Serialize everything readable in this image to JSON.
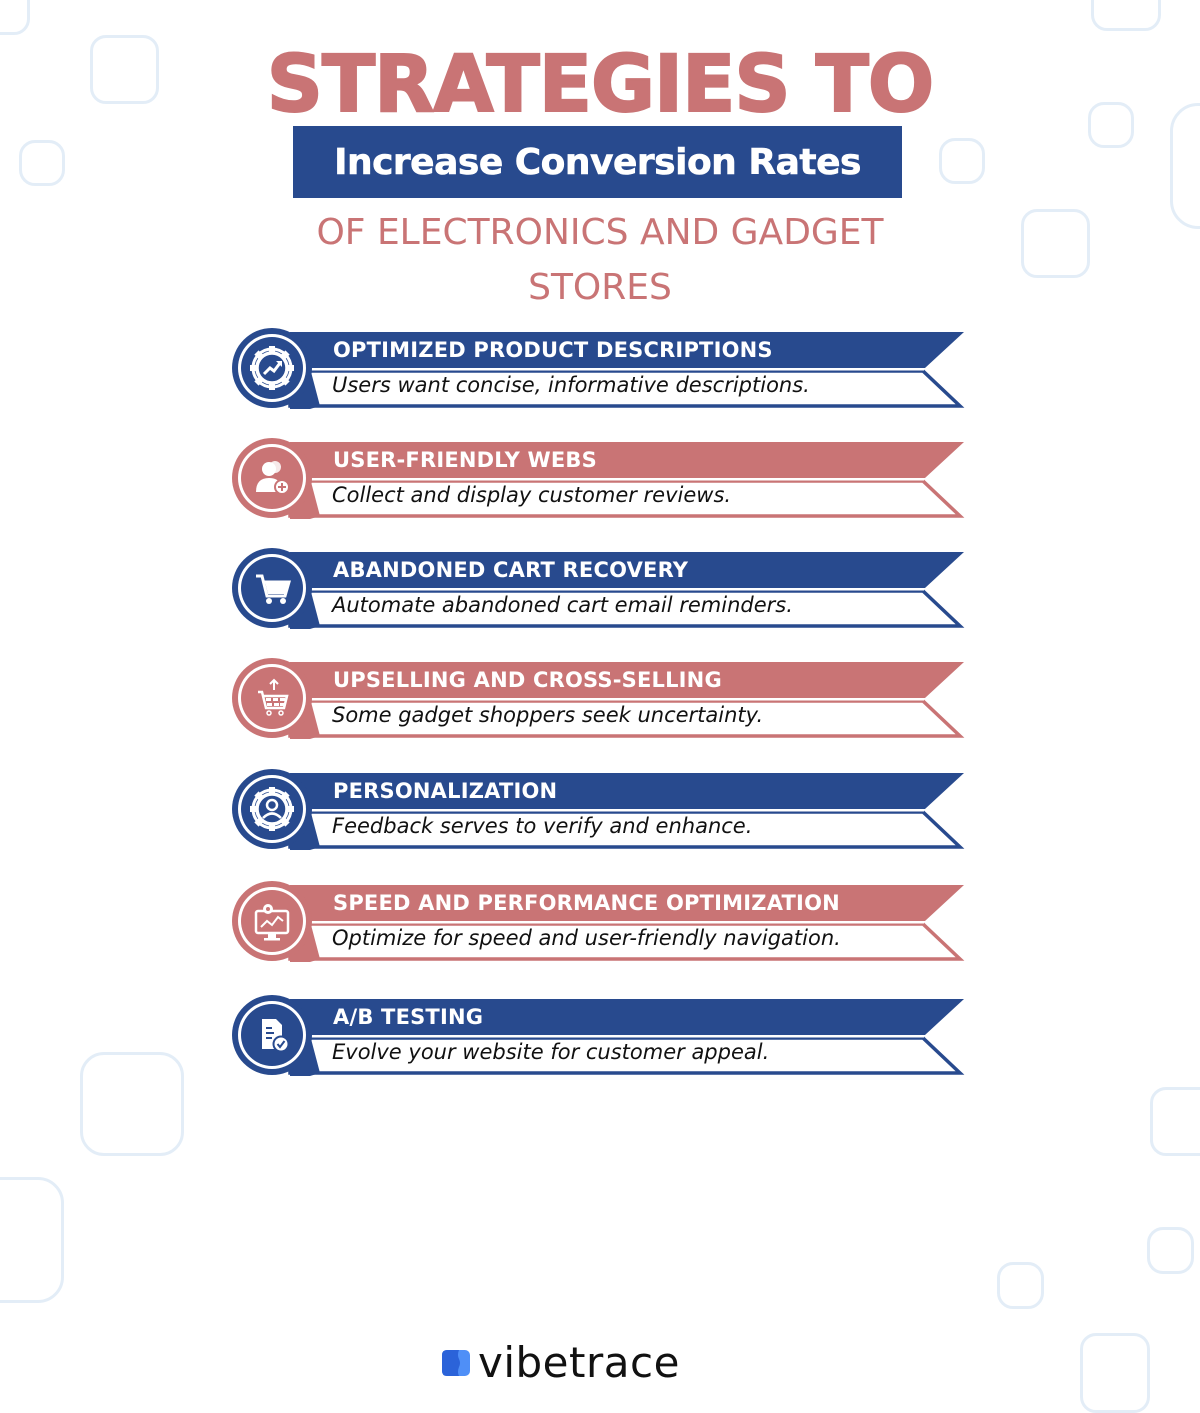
{
  "header": {
    "title_line1": "STRATEGIES TO",
    "title_highlight": "Increase Conversion Rates",
    "subtitle_line1": "OF ELECTRONICS AND GADGET",
    "subtitle_line2": "STORES"
  },
  "colors": {
    "navy": "#284a8e",
    "rose": "#c97475",
    "decor": "#e3edf7",
    "logo_blue": "#3b6fe0"
  },
  "strategies": [
    {
      "title": "OPTIMIZED PRODUCT DESCRIPTIONS",
      "description": "Users want concise, informative descriptions.",
      "icon": "gear-growth-icon",
      "color": "navy"
    },
    {
      "title": "USER-FRIENDLY WEBS",
      "description": "Collect and display customer reviews.",
      "icon": "add-user-icon",
      "color": "rose"
    },
    {
      "title": "ABANDONED CART RECOVERY",
      "description": "Automate abandoned cart email reminders.",
      "icon": "shopping-cart-icon",
      "color": "navy"
    },
    {
      "title": "UPSELLING AND CROSS-SELLING",
      "description": "Some gadget shoppers seek uncertainty.",
      "icon": "cart-exchange-icon",
      "color": "rose"
    },
    {
      "title": "PERSONALIZATION",
      "description": "Feedback serves to verify and enhance.",
      "icon": "gear-user-icon",
      "color": "navy"
    },
    {
      "title": "SPEED AND PERFORMANCE OPTIMIZATION",
      "description": "Optimize for speed and user-friendly navigation.",
      "icon": "monitor-performance-icon",
      "color": "rose"
    },
    {
      "title": "A/B TESTING",
      "description": "Evolve your website for customer appeal.",
      "icon": "document-check-icon",
      "color": "navy"
    }
  ],
  "footer": {
    "brand": "vibetrace"
  }
}
